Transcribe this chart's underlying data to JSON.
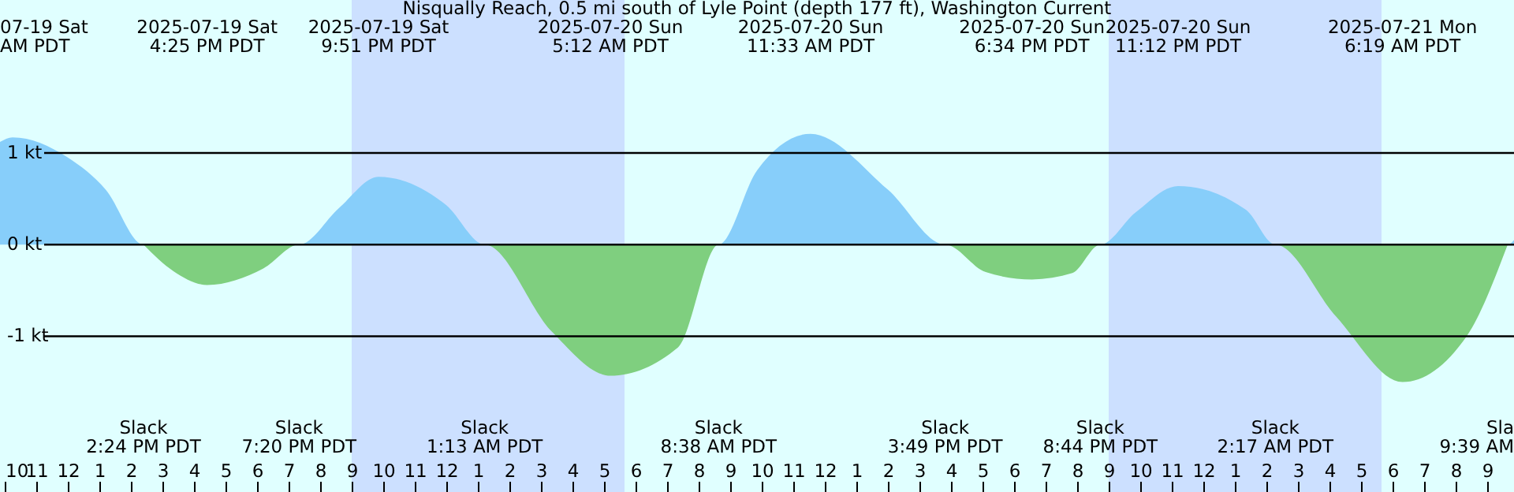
{
  "chart_data": {
    "type": "area",
    "title": "Nisqually Reach, 0.5 mi south of Lyle Point (depth 177 ft), Washington Current",
    "series": [
      {
        "color": "#87cefa",
        "x": [
          "2025-07-19T09:51",
          "2025-07-19T10:15",
          "2025-07-19T12:00",
          "2025-07-19T13:12",
          "2025-07-19T14:24",
          "2025-07-19T19:20",
          "2025-07-19T20:36",
          "2025-07-19T21:51",
          "2025-07-20T00:00",
          "2025-07-20T01:13",
          "2025-07-20T08:38",
          "2025-07-20T09:51",
          "2025-07-20T11:33",
          "2025-07-20T14:00",
          "2025-07-20T15:49",
          "2025-07-20T20:44",
          "2025-07-20T21:51",
          "2025-07-20T23:12",
          "2025-07-21T01:21",
          "2025-07-21T02:17",
          "2025-07-21T09:39",
          "2025-07-21T09:51"
        ],
        "values": [
          1.12,
          1.17,
          0.95,
          0.6,
          0,
          0,
          0.4,
          0.74,
          0.43,
          0,
          0,
          0.81,
          1.21,
          0.6,
          0,
          0,
          0.35,
          0.64,
          0.38,
          0,
          0,
          0.05
        ]
      },
      {
        "color": "#7fcf7f",
        "x": [
          "2025-07-19T14:24",
          "2025-07-19T15:21",
          "2025-07-19T16:25",
          "2025-07-19T18:12",
          "2025-07-19T19:20",
          "2025-07-20T01:13",
          "2025-07-20T03:21",
          "2025-07-20T05:12",
          "2025-07-20T07:21",
          "2025-07-20T08:38",
          "2025-07-20T15:49",
          "2025-07-20T17:06",
          "2025-07-20T18:34",
          "2025-07-20T19:51",
          "2025-07-20T20:44",
          "2025-07-21T02:17",
          "2025-07-21T04:12",
          "2025-07-21T06:19",
          "2025-07-21T08:21",
          "2025-07-21T09:39"
        ],
        "values": [
          0,
          -0.29,
          -0.44,
          -0.26,
          0,
          0,
          -0.95,
          -1.43,
          -1.12,
          0,
          0,
          -0.3,
          -0.38,
          -0.31,
          0,
          0,
          -0.78,
          -1.5,
          -1.0,
          0
        ]
      }
    ],
    "xlim": [
      "2025-07-19T09:51",
      "2025-07-21T09:51"
    ],
    "xticks": [
      {
        "value": "2025-07-19T10:00",
        "label": "10"
      },
      {
        "value": "2025-07-19T11:00",
        "label": "11"
      },
      {
        "value": "2025-07-19T12:00",
        "label": "12"
      },
      {
        "value": "2025-07-19T13:00",
        "label": "1"
      },
      {
        "value": "2025-07-19T14:00",
        "label": "2"
      },
      {
        "value": "2025-07-19T15:00",
        "label": "3"
      },
      {
        "value": "2025-07-19T16:00",
        "label": "4"
      },
      {
        "value": "2025-07-19T17:00",
        "label": "5"
      },
      {
        "value": "2025-07-19T18:00",
        "label": "6"
      },
      {
        "value": "2025-07-19T19:00",
        "label": "7"
      },
      {
        "value": "2025-07-19T20:00",
        "label": "8"
      },
      {
        "value": "2025-07-19T21:00",
        "label": "9"
      },
      {
        "value": "2025-07-19T22:00",
        "label": "10"
      },
      {
        "value": "2025-07-19T23:00",
        "label": "11"
      },
      {
        "value": "2025-07-20T00:00",
        "label": "12"
      },
      {
        "value": "2025-07-20T01:00",
        "label": "1"
      },
      {
        "value": "2025-07-20T02:00",
        "label": "2"
      },
      {
        "value": "2025-07-20T03:00",
        "label": "3"
      },
      {
        "value": "2025-07-20T04:00",
        "label": "4"
      },
      {
        "value": "2025-07-20T05:00",
        "label": "5"
      },
      {
        "value": "2025-07-20T06:00",
        "label": "6"
      },
      {
        "value": "2025-07-20T07:00",
        "label": "7"
      },
      {
        "value": "2025-07-20T08:00",
        "label": "8"
      },
      {
        "value": "2025-07-20T09:00",
        "label": "9"
      },
      {
        "value": "2025-07-20T10:00",
        "label": "10"
      },
      {
        "value": "2025-07-20T11:00",
        "label": "11"
      },
      {
        "value": "2025-07-20T12:00",
        "label": "12"
      },
      {
        "value": "2025-07-20T13:00",
        "label": "1"
      },
      {
        "value": "2025-07-20T14:00",
        "label": "2"
      },
      {
        "value": "2025-07-20T15:00",
        "label": "3"
      },
      {
        "value": "2025-07-20T16:00",
        "label": "4"
      },
      {
        "value": "2025-07-20T17:00",
        "label": "5"
      },
      {
        "value": "2025-07-20T18:00",
        "label": "6"
      },
      {
        "value": "2025-07-20T19:00",
        "label": "7"
      },
      {
        "value": "2025-07-20T20:00",
        "label": "8"
      },
      {
        "value": "2025-07-20T21:00",
        "label": "9"
      },
      {
        "value": "2025-07-20T22:00",
        "label": "10"
      },
      {
        "value": "2025-07-20T23:00",
        "label": "11"
      },
      {
        "value": "2025-07-21T00:00",
        "label": "12"
      },
      {
        "value": "2025-07-21T01:00",
        "label": "1"
      },
      {
        "value": "2025-07-21T02:00",
        "label": "2"
      },
      {
        "value": "2025-07-21T03:00",
        "label": "3"
      },
      {
        "value": "2025-07-21T04:00",
        "label": "4"
      },
      {
        "value": "2025-07-21T05:00",
        "label": "5"
      },
      {
        "value": "2025-07-21T06:00",
        "label": "6"
      },
      {
        "value": "2025-07-21T07:00",
        "label": "7"
      },
      {
        "value": "2025-07-21T08:00",
        "label": "8"
      },
      {
        "value": "2025-07-21T09:00",
        "label": "9"
      }
    ],
    "ylim": [
      -2.7,
      2.67
    ],
    "yticks": [
      {
        "value": 1,
        "label": "1 kt"
      },
      {
        "value": 0,
        "label": "0 kt"
      },
      {
        "value": -1,
        "label": "-1 kt"
      }
    ],
    "grid": "y",
    "bands": [
      {
        "axis": "x",
        "from": "2025-07-19T21:00",
        "to": "2025-07-20T05:39",
        "color": "#cce0ff"
      },
      {
        "axis": "x",
        "from": "2025-07-20T21:00",
        "to": "2025-07-21T05:39",
        "color": "#cce0ff"
      }
    ],
    "annotations": [
      "07-19 Sat\nAM PDT",
      "Slack\n2:24 PM PDT",
      "2025-07-19 Sat\n4:25 PM PDT",
      "Slack\n7:20 PM PDT",
      "2025-07-19 Sat\n9:51 PM PDT",
      "Slack\n1:13 AM PDT",
      "2025-07-20 Sun\n5:12 AM PDT",
      "Slack\n8:38 AM PDT",
      "2025-07-20 Sun\n11:33 AM PDT",
      "Slack\n3:49 PM PDT",
      "2025-07-20 Sun\n6:34 PM PDT",
      "Slack\n8:44 PM PDT",
      "2025-07-20 Sun\n11:12 PM PDT",
      "Slack\n2:17 AM PDT",
      "2025-07-21 Mon\n6:19 AM PDT",
      "Sla\n9:39 AM"
    ]
  }
}
